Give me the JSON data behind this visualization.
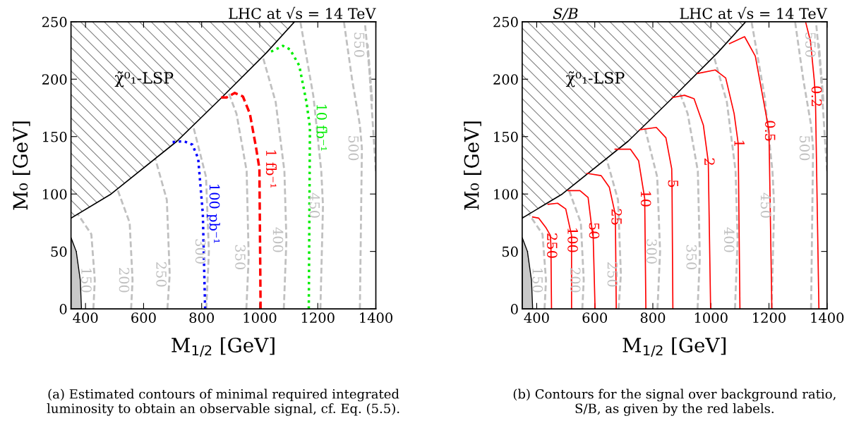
{
  "chart_data": [
    {
      "type": "line",
      "title": "LHC at √s = 14 TeV",
      "xlabel": "M$_{1/2}$ [GeV]",
      "ylabel": "M₀ [GeV]",
      "xlim": [
        350,
        1400
      ],
      "xticks": [
        400,
        600,
        800,
        1000,
        1200,
        1400
      ],
      "ylim": [
        0,
        250
      ],
      "yticks": [
        0,
        50,
        100,
        150,
        200,
        250
      ],
      "grid": false,
      "legend": false,
      "marker": "none",
      "annotations": [
        "χ̃⁰₁-LSP",
        "(a) Estimated contours of minimal required integrated\nluminosity to obtain an observable signal, cf. Eq. (5.5)."
      ],
      "series": [
        {
          "type": "line",
          "color": "#000000",
          "line_style": "solid",
          "x": [
            350,
            488,
            715,
            865,
            1023,
            1120
          ],
          "values": [
            79,
            100,
            146,
            183,
            223,
            250
          ],
          "lower": [
            79,
            100,
            146,
            183,
            223,
            250
          ],
          "upper": [
            250,
            250,
            250,
            250,
            250,
            250
          ]
        },
        {
          "type": "area",
          "color": "#c8c8c8",
          "x": [
            350,
            368,
            382,
            386
          ],
          "values": [
            62,
            50,
            25,
            0
          ]
        },
        {
          "name": "150",
          "color": "#c0c0c0",
          "line_style": "dashed",
          "x": [
            427,
            432,
            420,
            372
          ],
          "values": [
            0,
            25,
            65,
            83
          ]
        },
        {
          "name": "200",
          "color": "#c0c0c0",
          "line_style": "dashed",
          "x": [
            557,
            562,
            552,
            510
          ],
          "values": [
            0,
            25,
            75,
            104
          ]
        },
        {
          "name": "250",
          "color": "#c0c0c0",
          "line_style": "dashed",
          "x": [
            682,
            690,
            680,
            640
          ],
          "values": [
            0,
            30,
            95,
            131
          ]
        },
        {
          "name": "300",
          "color": "#c0c0c0",
          "line_style": "dashed",
          "x": [
            816,
            825,
            815,
            770
          ],
          "values": [
            0,
            50,
            115,
            160
          ]
        },
        {
          "name": "350",
          "color": "#c0c0c0",
          "line_style": "dashed",
          "x": [
            954,
            962,
            955,
            920,
            890
          ],
          "values": [
            0,
            45,
            120,
            170,
            190
          ]
        },
        {
          "name": "400",
          "color": "#c0c0c0",
          "line_style": "dashed",
          "x": [
            1083,
            1092,
            1085,
            1055,
            1010
          ],
          "values": [
            0,
            60,
            120,
            180,
            220
          ]
        },
        {
          "name": "450",
          "color": "#c0c0c0",
          "line_style": "dashed",
          "x": [
            1209,
            1218,
            1212,
            1185,
            1140
          ],
          "values": [
            0,
            90,
            120,
            185,
            250
          ]
        },
        {
          "name": "500",
          "color": "#c0c0c0",
          "line_style": "dashed",
          "x": [
            1345,
            1352,
            1345,
            1318,
            1290
          ],
          "values": [
            0,
            140,
            160,
            200,
            250
          ]
        },
        {
          "name": "550",
          "color": "#c0c0c0",
          "line_style": "dashed",
          "x": [
            1400,
            1372,
            1388,
            1362
          ],
          "values": [
            120,
            230,
            180,
            250
          ]
        },
        {
          "name": "100 pb⁻¹",
          "color": "#0000ff",
          "line_style": "dotted",
          "x": [
            812,
            804,
            788,
            768,
            739,
            691
          ],
          "values": [
            0,
            83,
            131,
            143,
            146,
            145
          ]
        },
        {
          "name": "1 fb⁻¹",
          "color": "#ff0000",
          "line_style": "dashed",
          "x": [
            1003,
            999,
            987,
            966,
            942,
            914,
            885,
            867
          ],
          "values": [
            0,
            122,
            141,
            170,
            185,
            188,
            184,
            184
          ]
        },
        {
          "name": "10 fb⁻¹",
          "color": "#00ee00",
          "line_style": "dotted",
          "x": [
            1169,
            1173,
            1161,
            1136,
            1104,
            1080,
            1031
          ],
          "values": [
            0,
            158,
            180,
            212,
            226,
            229,
            223
          ]
        }
      ]
    },
    {
      "type": "line",
      "title": "LHC at √s = 14 TeV",
      "subtitle": "S/B",
      "xlabel": "M$_{1/2}$ [GeV]",
      "ylabel": "M₀ [GeV]",
      "xlim": [
        350,
        1400
      ],
      "xticks": [
        400,
        600,
        800,
        1000,
        1200,
        1400
      ],
      "ylim": [
        0,
        250
      ],
      "yticks": [
        0,
        50,
        100,
        150,
        200,
        250
      ],
      "grid": false,
      "legend": false,
      "marker": "none",
      "annotations": [
        "χ̃⁰₁-LSP",
        "(b) Contours for the signal over background ratio,\nS/B, as given by the red labels."
      ],
      "series": [
        {
          "type": "line",
          "color": "#000000",
          "line_style": "solid",
          "x": [
            350,
            488,
            715,
            865,
            1023,
            1120
          ],
          "values": [
            79,
            100,
            146,
            183,
            223,
            250
          ],
          "lower": [
            79,
            100,
            146,
            183,
            223,
            250
          ],
          "upper": [
            250,
            250,
            250,
            250,
            250,
            250
          ]
        },
        {
          "type": "area",
          "color": "#c8c8c8",
          "x": [
            350,
            368,
            382,
            386
          ],
          "values": [
            62,
            50,
            25,
            0
          ]
        },
        {
          "name": "150",
          "color": "#c0c0c0",
          "line_style": "dashed",
          "x": [
            427,
            432,
            420,
            372
          ],
          "values": [
            0,
            25,
            65,
            83
          ]
        },
        {
          "name": "200",
          "color": "#c0c0c0",
          "line_style": "dashed",
          "x": [
            557,
            562,
            552,
            510
          ],
          "values": [
            0,
            25,
            75,
            104
          ]
        },
        {
          "name": "250",
          "color": "#c0c0c0",
          "line_style": "dashed",
          "x": [
            682,
            690,
            680,
            640
          ],
          "values": [
            0,
            30,
            95,
            131
          ]
        },
        {
          "name": "300",
          "color": "#c0c0c0",
          "line_style": "dashed",
          "x": [
            816,
            825,
            815,
            770
          ],
          "values": [
            0,
            50,
            115,
            160
          ]
        },
        {
          "name": "350",
          "color": "#c0c0c0",
          "line_style": "dashed",
          "x": [
            954,
            962,
            955,
            920,
            890
          ],
          "values": [
            0,
            45,
            120,
            170,
            190
          ]
        },
        {
          "name": "400",
          "color": "#c0c0c0",
          "line_style": "dashed",
          "x": [
            1083,
            1092,
            1085,
            1055,
            1010
          ],
          "values": [
            0,
            60,
            120,
            180,
            220
          ]
        },
        {
          "name": "450",
          "color": "#c0c0c0",
          "line_style": "dashed",
          "x": [
            1209,
            1218,
            1212,
            1185,
            1140
          ],
          "values": [
            0,
            90,
            120,
            185,
            250
          ]
        },
        {
          "name": "500",
          "color": "#c0c0c0",
          "line_style": "dashed",
          "x": [
            1345,
            1352,
            1345,
            1318,
            1290
          ],
          "values": [
            0,
            140,
            160,
            200,
            250
          ]
        },
        {
          "name": "550",
          "color": "#c0c0c0",
          "line_style": "dashed",
          "x": [
            1400,
            1372,
            1388,
            1362
          ],
          "values": [
            120,
            230,
            180,
            250
          ]
        },
        {
          "name": "250",
          "color": "#ff0000",
          "line_style": "solid",
          "x": [
            451,
            449,
            447,
            431,
            407,
            386
          ],
          "values": [
            0,
            55,
            64,
            71,
            79,
            80
          ]
        },
        {
          "name": "100",
          "color": "#ff0000",
          "line_style": "solid",
          "x": [
            520,
            520,
            520,
            500,
            472,
            439
          ],
          "values": [
            0,
            60,
            64,
            87,
            92,
            91
          ]
        },
        {
          "name": "50",
          "color": "#ff0000",
          "line_style": "solid",
          "x": [
            601,
            594,
            593,
            577,
            549,
            508
          ],
          "values": [
            0,
            68,
            64,
            97,
            103,
            103
          ]
        },
        {
          "name": "25",
          "color": "#ff0000",
          "line_style": "solid",
          "x": [
            674,
            671,
            670,
            650,
            622,
            573
          ],
          "values": [
            0,
            80,
            83,
            106,
            116,
            118
          ]
        },
        {
          "name": "10",
          "color": "#ff0000",
          "line_style": "solid",
          "x": [
            776,
            772,
            751,
            723,
            670
          ],
          "values": [
            0,
            96,
            129,
            139,
            139
          ]
        },
        {
          "name": "5",
          "color": "#ff0000",
          "line_style": "solid",
          "x": [
            869,
            866,
            865,
            845,
            812,
            755
          ],
          "values": [
            0,
            109,
            122,
            149,
            158,
            156
          ]
        },
        {
          "name": "2",
          "color": "#ff0000",
          "line_style": "solid",
          "x": [
            999,
            991,
            974,
            942,
            909,
            867
          ],
          "values": [
            0,
            128,
            160,
            183,
            186,
            184
          ]
        },
        {
          "name": "1",
          "color": "#ff0000",
          "line_style": "solid",
          "x": [
            1100,
            1094,
            1080,
            1051,
            1015,
            954
          ],
          "values": [
            0,
            144,
            170,
            201,
            208,
            205
          ]
        },
        {
          "name": "0.5",
          "color": "#ff0000",
          "line_style": "solid",
          "x": [
            1210,
            1200,
            1185,
            1153,
            1116,
            1064
          ],
          "values": [
            0,
            155,
            176,
            220,
            237,
            231
          ]
        },
        {
          "name": "0.2",
          "color": "#ff0000",
          "line_style": "solid",
          "x": [
            1372,
            1360,
            1356,
            1343,
            1327
          ],
          "values": [
            0,
            185,
            199,
            233,
            249
          ]
        }
      ]
    }
  ]
}
